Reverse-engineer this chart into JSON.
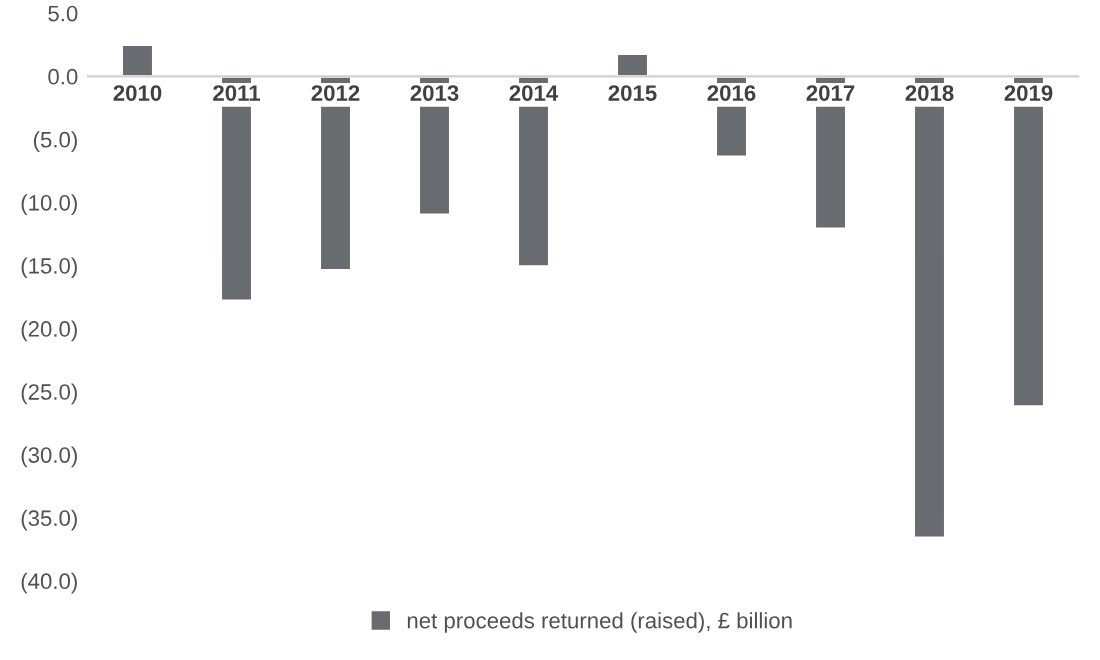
{
  "chart_data": {
    "type": "bar",
    "categories": [
      "2010",
      "2011",
      "2012",
      "2013",
      "2014",
      "2015",
      "2016",
      "2017",
      "2018",
      "2019"
    ],
    "series": [
      {
        "name": "net proceeds returned (raised), £ billion",
        "color": "#686b70",
        "values": [
          2.5,
          -17.8,
          -15.4,
          -11.0,
          -15.1,
          1.8,
          -6.4,
          -12.1,
          -36.6,
          -26.2
        ]
      }
    ],
    "ylim": [
      -40,
      5
    ],
    "yticks": [
      {
        "value": 5,
        "label": "5.0"
      },
      {
        "value": 0,
        "label": "0.0"
      },
      {
        "value": -5,
        "label": "(5.0)"
      },
      {
        "value": -10,
        "label": "(10.0)"
      },
      {
        "value": -15,
        "label": "(15.0)"
      },
      {
        "value": -20,
        "label": "(20.0)"
      },
      {
        "value": -25,
        "label": "(25.0)"
      },
      {
        "value": -30,
        "label": "(30.0)"
      },
      {
        "value": -35,
        "label": "(35.0)"
      },
      {
        "value": -40,
        "label": "(40.0)"
      }
    ],
    "grid": false,
    "legend": "bottom"
  }
}
